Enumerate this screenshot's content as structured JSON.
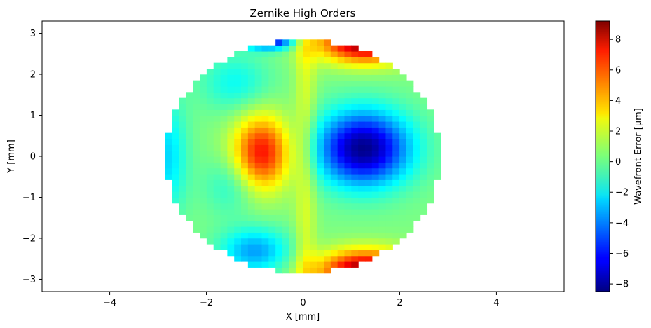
{
  "chart_data": {
    "type": "heatmap",
    "title": "Zernike High Orders",
    "xlabel": "X [mm]",
    "ylabel": "Y [mm]",
    "xlim": [
      -5.4,
      5.4
    ],
    "ylim": [
      -3.3,
      3.3
    ],
    "xticks": [
      -4,
      -2,
      0,
      2,
      4
    ],
    "yticks": [
      -3,
      -2,
      -1,
      0,
      1,
      2,
      3
    ],
    "grid": false,
    "aperture_radius_mm": 2.85,
    "grid_cells_per_side": 40,
    "colormap": "jet",
    "colorbar": {
      "label": "Wavefront Error [µm]",
      "min": -8.5,
      "max": 9.2,
      "ticks": [
        -8,
        -6,
        -4,
        -2,
        0,
        2,
        4,
        6,
        8
      ],
      "placement": "right"
    },
    "features": [
      {
        "kind": "maximum",
        "x": -0.85,
        "y": 0.1,
        "value": 6.5
      },
      {
        "kind": "minimum",
        "x": 1.2,
        "y": 0.2,
        "value": -8.0
      },
      {
        "kind": "edge-maximum",
        "x": 1.2,
        "y": 2.6,
        "value": 8.8
      },
      {
        "kind": "edge-maximum",
        "x": 1.2,
        "y": -2.6,
        "value": 8.8
      },
      {
        "kind": "edge-minimum",
        "x": -0.7,
        "y": 2.7,
        "value": -7.0
      },
      {
        "kind": "edge-minimum",
        "x": -1.0,
        "y": -2.3,
        "value": -3.5
      }
    ]
  }
}
